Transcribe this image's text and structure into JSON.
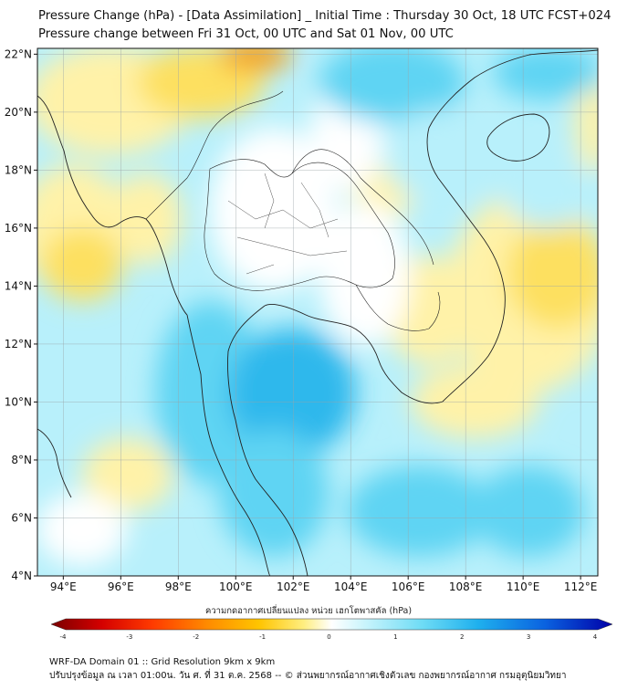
{
  "title": {
    "line1": "Pressure Change (hPa) - [Data Assimilation] _ Initial Time : Thursday 30 Oct, 18 UTC FCST+024",
    "line2": "Pressure change between Fri 31 Oct, 00 UTC and Sat 01 Nov, 00 UTC"
  },
  "map": {
    "lat_labels": [
      "22°N",
      "20°N",
      "18°N",
      "16°N",
      "14°N",
      "12°N",
      "10°N",
      "8°N",
      "6°N",
      "4°N"
    ],
    "lon_labels": [
      "94°E",
      "96°E",
      "98°E",
      "100°E",
      "102°E",
      "104°E",
      "106°E",
      "108°E",
      "110°E",
      "112°E"
    ],
    "lat_range": [
      4,
      22.2
    ],
    "lon_range": [
      93.1,
      112.6
    ],
    "grid": true,
    "colors": {
      "neutral": "#ffffff",
      "rise_light": "#b8f0fb",
      "rise_mid": "#5fd4f3",
      "rise_strong": "#2fb8ec",
      "fall_light": "#fff2a8",
      "fall_mid": "#fde060",
      "fall_strong": "#f4a21a",
      "coastline": "#222222"
    }
  },
  "colorbar": {
    "title": "ความกดอากาศเปลี่ยนแปลง หน่วย เฮกโตพาสคัล (hPa)",
    "ticks": [
      "-4",
      "-3",
      "-2",
      "-1",
      "0",
      "1",
      "2",
      "3",
      "4"
    ],
    "range": [
      -4,
      4
    ],
    "stops": [
      "#7a0000",
      "#d40000",
      "#ff3a00",
      "#ff8c00",
      "#ffc400",
      "#ffee80",
      "#ffffff",
      "#c8f4fc",
      "#6fdcf5",
      "#1fb0ee",
      "#0a62e0",
      "#0000a8"
    ]
  },
  "footer": {
    "line1": "WRF-DA Domain 01 :: Grid Resolution 9km x 9km",
    "line2": "ปรับปรุงข้อมูล ณ เวลา 01:00น. วัน ศ. ที่ 31 ต.ค. 2568 -- © ส่วนพยากรณ์อากาศเชิงตัวเลข กองพยากรณ์อากาศ กรมอุตุนิยมวิทยา"
  }
}
